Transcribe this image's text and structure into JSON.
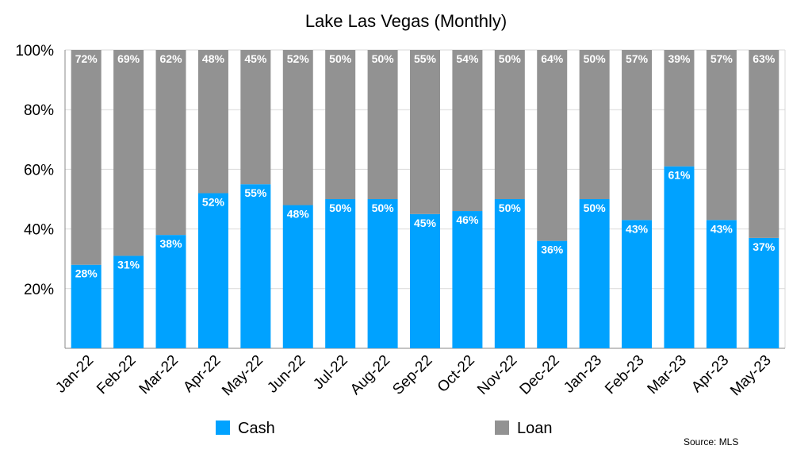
{
  "chart_data": {
    "type": "bar",
    "stacked": true,
    "title": "Lake Las Vegas (Monthly)",
    "xlabel": "",
    "ylabel": "",
    "ylim": [
      0,
      100
    ],
    "yticks": [
      "20%",
      "40%",
      "60%",
      "80%",
      "100%"
    ],
    "ytick_values": [
      20,
      40,
      60,
      80,
      100
    ],
    "grid": true,
    "legend_position": "bottom",
    "categories": [
      "Jan-22",
      "Feb-22",
      "Mar-22",
      "Apr-22",
      "May-22",
      "Jun-22",
      "Jul-22",
      "Aug-22",
      "Sep-22",
      "Oct-22",
      "Nov-22",
      "Dec-22",
      "Jan-23",
      "Feb-23",
      "Mar-23",
      "Apr-23",
      "May-23"
    ],
    "series": [
      {
        "name": "Cash",
        "color": "#00A2FF",
        "values": [
          28,
          31,
          38,
          52,
          55,
          48,
          50,
          50,
          45,
          46,
          50,
          36,
          50,
          43,
          61,
          43,
          37
        ]
      },
      {
        "name": "Loan",
        "color": "#929292",
        "values": [
          72,
          69,
          62,
          48,
          45,
          52,
          50,
          50,
          55,
          54,
          50,
          64,
          50,
          57,
          39,
          57,
          63
        ]
      }
    ],
    "source": "Source: MLS"
  }
}
